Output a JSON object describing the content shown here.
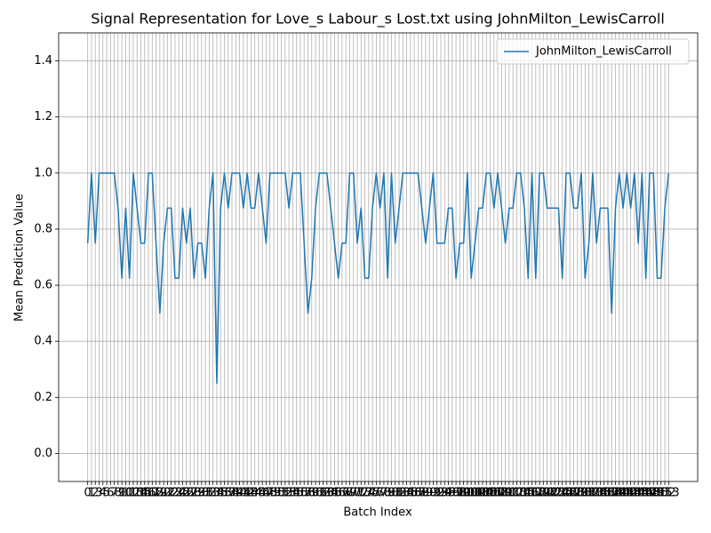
{
  "chart_data": {
    "type": "line",
    "title": "Signal Representation for Love_s Labour_s Lost.txt using JohnMilton_LewisCarroll",
    "xlabel": "Batch Index",
    "ylabel": "Mean Prediction Value",
    "x": [
      0,
      1,
      2,
      3,
      4,
      5,
      6,
      7,
      8,
      9,
      10,
      11,
      12,
      13,
      14,
      15,
      16,
      17,
      18,
      19,
      20,
      21,
      22,
      23,
      24,
      25,
      26,
      27,
      28,
      29,
      30,
      31,
      32,
      33,
      34,
      35,
      36,
      37,
      38,
      39,
      40,
      41,
      42,
      43,
      44,
      45,
      46,
      47,
      48,
      49,
      50,
      51,
      52,
      53,
      54,
      55,
      56,
      57,
      58,
      59,
      60,
      61,
      62,
      63,
      64,
      65,
      66,
      67,
      68,
      69,
      70,
      71,
      72,
      73,
      74,
      75,
      76,
      77,
      78,
      79,
      80,
      81,
      82,
      83,
      84,
      85,
      86,
      87,
      88,
      89,
      90,
      91,
      92,
      93,
      94,
      95,
      96,
      97,
      98,
      99,
      100,
      101,
      102,
      103,
      104,
      105,
      106,
      107,
      108,
      109,
      110,
      111,
      112,
      113,
      114,
      115,
      116,
      117,
      118,
      119,
      120,
      121,
      122,
      123,
      124,
      125,
      126,
      127,
      128,
      129,
      130,
      131,
      132,
      133,
      134,
      135,
      136,
      137,
      138,
      139,
      140,
      141,
      142,
      143,
      144,
      145,
      146,
      147,
      148,
      149,
      150,
      151,
      152,
      153
    ],
    "series": [
      {
        "name": "JohnMilton_LewisCarroll",
        "color": "#1f77b4",
        "values": [
          0.75,
          1,
          0.75,
          1,
          1,
          1,
          1,
          1,
          0.875,
          0.625,
          0.875,
          0.625,
          1,
          0.875,
          0.75,
          0.75,
          1,
          1,
          0.75,
          0.5,
          0.75,
          0.875,
          0.875,
          0.625,
          0.625,
          0.875,
          0.75,
          0.875,
          0.625,
          0.75,
          0.75,
          0.625,
          0.875,
          1,
          0.25,
          0.875,
          1,
          0.875,
          1,
          1,
          1,
          0.875,
          1,
          0.875,
          0.875,
          1,
          0.875,
          0.75,
          1,
          1,
          1,
          1,
          1,
          0.875,
          1,
          1,
          1,
          0.75,
          0.5,
          0.625,
          0.875,
          1,
          1,
          1,
          0.875,
          0.75,
          0.625,
          0.75,
          0.75,
          1,
          1,
          0.75,
          0.875,
          0.625,
          0.625,
          0.875,
          1,
          0.875,
          1,
          0.625,
          1,
          0.75,
          0.875,
          1,
          1,
          1,
          1,
          1,
          0.875,
          0.75,
          0.875,
          1,
          0.75,
          0.75,
          0.75,
          0.875,
          0.875,
          0.625,
          0.75,
          0.75,
          1,
          0.625,
          0.75,
          0.875,
          0.875,
          1,
          1,
          0.875,
          1,
          0.875,
          0.75,
          0.875,
          0.875,
          1,
          1,
          0.875,
          0.625,
          1,
          0.625,
          1,
          1,
          0.875,
          0.875,
          0.875,
          0.875,
          0.625,
          1,
          1,
          0.875,
          0.875,
          1,
          0.625,
          0.75,
          1,
          0.75,
          0.875,
          0.875,
          0.875,
          0.5,
          0.875,
          1,
          0.875,
          1,
          0.875,
          1,
          0.75,
          1,
          0.625,
          1,
          1,
          0.625,
          0.625,
          0.875,
          1
        ]
      }
    ],
    "xlim": [
      -7.65,
      160.65
    ],
    "xticks": [
      0,
      1,
      2,
      3,
      4,
      5,
      6,
      7,
      8,
      9,
      10,
      11,
      12,
      13,
      14,
      15,
      16,
      17,
      18,
      19,
      20,
      21,
      22,
      23,
      24,
      25,
      26,
      27,
      28,
      29,
      30,
      31,
      32,
      33,
      34,
      35,
      36,
      37,
      38,
      39,
      40,
      41,
      42,
      43,
      44,
      45,
      46,
      47,
      48,
      49,
      50,
      51,
      52,
      53,
      54,
      55,
      56,
      57,
      58,
      59,
      60,
      61,
      62,
      63,
      64,
      65,
      66,
      67,
      68,
      69,
      70,
      71,
      72,
      73,
      74,
      75,
      76,
      77,
      78,
      79,
      80,
      81,
      82,
      83,
      84,
      85,
      86,
      87,
      88,
      89,
      90,
      91,
      92,
      93,
      94,
      95,
      96,
      97,
      98,
      99,
      100,
      101,
      102,
      103,
      104,
      105,
      106,
      107,
      108,
      109,
      110,
      111,
      112,
      113,
      114,
      115,
      116,
      117,
      118,
      119,
      120,
      121,
      122,
      123,
      124,
      125,
      126,
      127,
      128,
      129,
      130,
      131,
      132,
      133,
      134,
      135,
      136,
      137,
      138,
      139,
      140,
      141,
      142,
      143,
      144,
      145,
      146,
      147,
      148,
      149,
      150,
      151,
      152,
      153
    ],
    "ylim": [
      -0.1,
      1.5
    ],
    "yticks": [
      {
        "value": 0,
        "label": "0.0"
      },
      0.2,
      0.4,
      0.6,
      0.8,
      {
        "value": 1,
        "label": "1.0"
      },
      1.2,
      1.4
    ],
    "grid": true,
    "legend": "upper right"
  }
}
